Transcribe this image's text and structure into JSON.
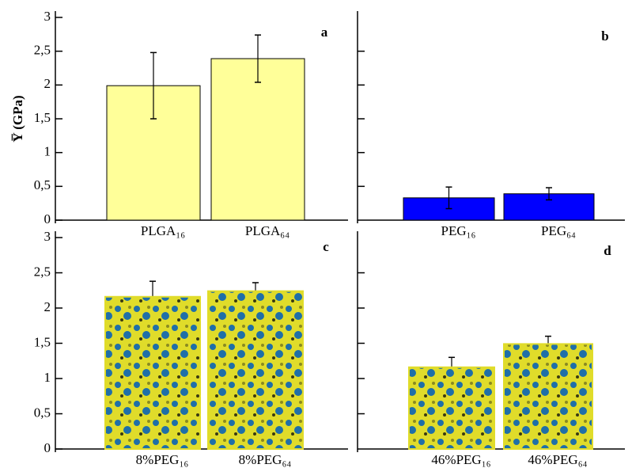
{
  "chart_data": [
    {
      "type": "bar",
      "panel_label": "a",
      "ylabel": "Y̅ (GPa)",
      "categories": [
        "PLGA₁₆",
        "PLGA₆₄"
      ],
      "values": [
        1.99,
        2.39
      ],
      "errors": [
        0.49,
        0.35
      ],
      "color": "#ffff99",
      "ylim": [
        0,
        3
      ],
      "yticks": [
        0,
        {
          "value": 0.5,
          "label": "0,5"
        },
        1,
        {
          "value": 1.5,
          "label": "1,5"
        },
        2,
        {
          "value": 2.5,
          "label": "2,5"
        },
        3
      ]
    },
    {
      "type": "bar",
      "panel_label": "b",
      "categories": [
        "PEG₁₆",
        "PEG₆₄"
      ],
      "values": [
        0.33,
        0.39
      ],
      "errors": [
        0.16,
        0.09
      ],
      "color": "#0000ff",
      "ylim": [
        0,
        3
      ],
      "yticks": [
        0.5,
        1,
        1.5,
        2,
        2.5
      ],
      "tick_labels": false
    },
    {
      "type": "bar",
      "panel_label": "c",
      "categories": [
        "8%PEG₁₆",
        "8%PEG₆₄"
      ],
      "values": [
        2.16,
        2.24
      ],
      "errors": [
        0.22,
        0.12
      ],
      "color": "#e0dc2a",
      "secondary_color": "#1f6fa8",
      "ylim": [
        0,
        3
      ],
      "yticks": [
        0,
        {
          "value": 0.5,
          "label": "0,5"
        },
        1,
        {
          "value": 1.5,
          "label": "1,5"
        },
        2,
        {
          "value": 2.5,
          "label": "2,5"
        },
        3
      ]
    },
    {
      "type": "bar",
      "panel_label": "d",
      "categories": [
        "46%PEG₁₆",
        "46%PEG₆₄"
      ],
      "values": [
        1.16,
        1.49
      ],
      "errors": [
        0.14,
        0.11
      ],
      "color": "#e0dc2a",
      "secondary_color": "#1f6fa8",
      "ylim": [
        0,
        3
      ],
      "yticks": [
        0.5,
        1,
        1.5,
        2,
        2.5
      ],
      "tick_labels": false
    }
  ]
}
